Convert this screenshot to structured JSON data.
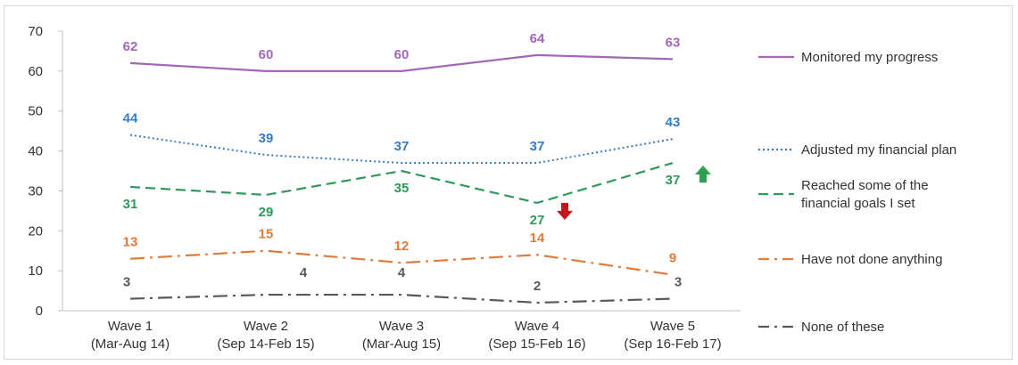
{
  "chart_data": {
    "type": "line",
    "title": "",
    "xlabel": "",
    "ylabel": "",
    "ylim": [
      0,
      70
    ],
    "yticks": [
      0,
      10,
      20,
      30,
      40,
      50,
      60,
      70
    ],
    "grid": false,
    "legend_position": "right",
    "categories": [
      [
        "Wave 1",
        "(Mar-Aug 14)"
      ],
      [
        "Wave 2",
        "(Sep 14-Feb 15)"
      ],
      [
        "Wave 3",
        "(Mar-Aug 15)"
      ],
      [
        "Wave 4",
        "(Sep 15-Feb 16)"
      ],
      [
        "Wave 5",
        "(Sep 16-Feb 17)"
      ]
    ],
    "series": [
      {
        "name": "Monitored my progress",
        "legend_lines": [
          "Monitored my progress"
        ],
        "values": [
          62,
          60,
          60,
          64,
          63
        ],
        "color": "#a366b8",
        "style": "solid",
        "label_position": "above"
      },
      {
        "name": "Adjusted my financial plan",
        "legend_lines": [
          "Adjusted my financial plan"
        ],
        "values": [
          44,
          39,
          37,
          37,
          43
        ],
        "color": "#3a7bbf",
        "style": "dotted",
        "label_position": "above"
      },
      {
        "name": "Reached some of the financial goals I set",
        "legend_lines": [
          "Reached some of the",
          "financial goals I set"
        ],
        "values": [
          31,
          29,
          35,
          27,
          37
        ],
        "color": "#2e9a5a",
        "style": "dashed",
        "label_position": "below"
      },
      {
        "name": "Have not done anything",
        "legend_lines": [
          "Have not done anything"
        ],
        "values": [
          13,
          15,
          12,
          14,
          9
        ],
        "color": "#e07b39",
        "style": "dashdot",
        "label_position": "above"
      },
      {
        "name": "None of these",
        "legend_lines": [
          "None of these"
        ],
        "values": [
          3,
          4,
          4,
          2,
          3
        ],
        "color": "#595959",
        "style": "dashdot",
        "label_position": "mixed"
      }
    ],
    "annotations": [
      {
        "type": "arrow-down",
        "series": 2,
        "category": 3,
        "color": "#c0181e"
      },
      {
        "type": "arrow-up",
        "series": 2,
        "category": 4,
        "color": "#2ea050"
      }
    ]
  }
}
